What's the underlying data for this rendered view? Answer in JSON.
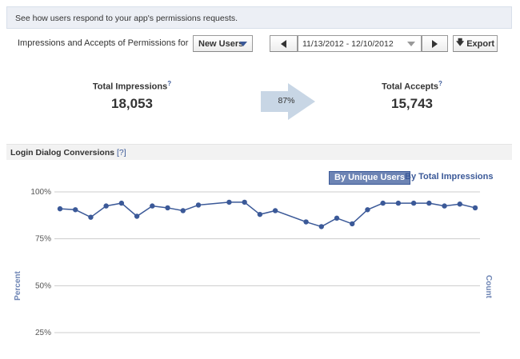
{
  "info_bar": {
    "text": "See how users respond to your app's permissions requests."
  },
  "controls": {
    "label": "Impressions and Accepts of Permissions for",
    "segment_dropdown": "New Users",
    "date_range": "11/13/2012 - 12/10/2012",
    "export_label": "Export"
  },
  "metrics": {
    "total_impressions": {
      "label": "Total Impressions",
      "help": "?",
      "value": "18,053"
    },
    "total_accepts": {
      "label": "Total Accepts",
      "help": "?",
      "value": "15,743"
    },
    "accept_rate": "87%"
  },
  "section": {
    "title": "Login Dialog Conversions",
    "help_link": "[?]"
  },
  "toggles": {
    "by_unique_users": "By Unique Users",
    "by_total_impressions": "By Total Impressions",
    "active": "by_unique_users"
  },
  "axes": {
    "left_label": "Percent",
    "right_label": "Count"
  },
  "colors": {
    "line": "#3b5998",
    "grid": "#cccccc",
    "toggle_active": "#6d84b4",
    "info_bg": "#eceff5"
  },
  "chart_data": {
    "type": "line",
    "y_ticks": [
      "100%",
      "75%",
      "50%",
      "25%"
    ],
    "y_tick_values": [
      100,
      75,
      50,
      25
    ],
    "ylim": [
      25,
      100
    ],
    "series": [
      {
        "values": [
          91,
          90.5,
          86.5,
          92.5,
          94,
          87,
          92.5,
          91.5,
          90,
          93,
          null,
          94.5,
          94.5,
          88,
          90,
          null,
          84,
          81.5,
          86,
          83,
          90.5,
          94,
          94,
          94,
          94,
          92.5,
          93.5,
          91.5
        ]
      }
    ]
  }
}
